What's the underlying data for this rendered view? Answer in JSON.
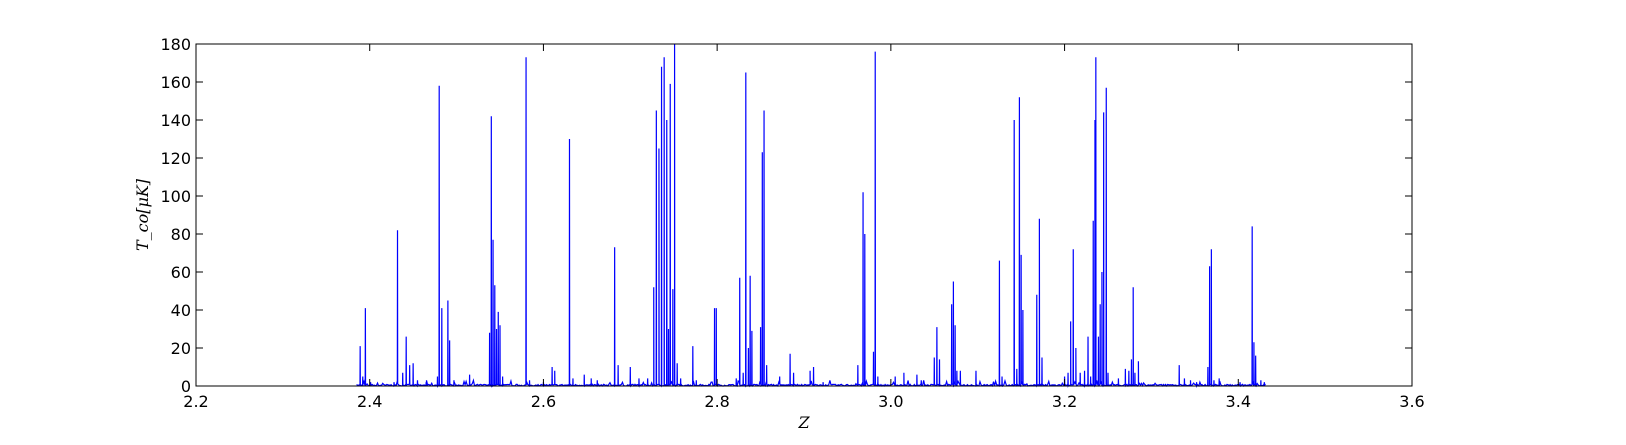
{
  "chart_data": {
    "type": "line",
    "title": "",
    "xlabel": "Z",
    "ylabel": "T_co[μK]",
    "xlim": [
      2.2,
      3.6
    ],
    "ylim": [
      0,
      180
    ],
    "xticks": [
      2.2,
      2.4,
      2.6,
      2.8,
      3.0,
      3.2,
      3.4,
      3.6
    ],
    "yticks": [
      0,
      20,
      40,
      60,
      80,
      100,
      120,
      140,
      160,
      180
    ],
    "xtick_labels": [
      "2.2",
      "2.4",
      "2.6",
      "2.8",
      "3.0",
      "3.2",
      "3.4",
      "3.6"
    ],
    "ytick_labels": [
      "0",
      "20",
      "40",
      "60",
      "80",
      "100",
      "120",
      "140",
      "160",
      "180"
    ],
    "grid": false,
    "legend": "none",
    "line_color": "#0000ff",
    "data_range_z": [
      2.385,
      3.432
    ],
    "peaks": [
      {
        "z": 2.389,
        "y": 21
      },
      {
        "z": 2.392,
        "y": 5
      },
      {
        "z": 2.395,
        "y": 41
      },
      {
        "z": 2.401,
        "y": 2
      },
      {
        "z": 2.428,
        "y": 2
      },
      {
        "z": 2.432,
        "y": 82
      },
      {
        "z": 2.438,
        "y": 7
      },
      {
        "z": 2.442,
        "y": 26
      },
      {
        "z": 2.446,
        "y": 11
      },
      {
        "z": 2.45,
        "y": 12
      },
      {
        "z": 2.455,
        "y": 3
      },
      {
        "z": 2.465,
        "y": 2
      },
      {
        "z": 2.478,
        "y": 5
      },
      {
        "z": 2.48,
        "y": 158
      },
      {
        "z": 2.483,
        "y": 41
      },
      {
        "z": 2.49,
        "y": 45
      },
      {
        "z": 2.492,
        "y": 24
      },
      {
        "z": 2.497,
        "y": 3
      },
      {
        "z": 2.515,
        "y": 6
      },
      {
        "z": 2.538,
        "y": 28
      },
      {
        "z": 2.54,
        "y": 142
      },
      {
        "z": 2.542,
        "y": 77
      },
      {
        "z": 2.544,
        "y": 53
      },
      {
        "z": 2.546,
        "y": 30
      },
      {
        "z": 2.548,
        "y": 39
      },
      {
        "z": 2.55,
        "y": 32
      },
      {
        "z": 2.553,
        "y": 5
      },
      {
        "z": 2.58,
        "y": 173
      },
      {
        "z": 2.584,
        "y": 3
      },
      {
        "z": 2.6,
        "y": 2
      },
      {
        "z": 2.61,
        "y": 10
      },
      {
        "z": 2.613,
        "y": 8
      },
      {
        "z": 2.63,
        "y": 130
      },
      {
        "z": 2.634,
        "y": 4
      },
      {
        "z": 2.647,
        "y": 6
      },
      {
        "z": 2.655,
        "y": 4
      },
      {
        "z": 2.662,
        "y": 3
      },
      {
        "z": 2.682,
        "y": 73
      },
      {
        "z": 2.686,
        "y": 11
      },
      {
        "z": 2.7,
        "y": 10
      },
      {
        "z": 2.71,
        "y": 4
      },
      {
        "z": 2.72,
        "y": 4
      },
      {
        "z": 2.727,
        "y": 52
      },
      {
        "z": 2.73,
        "y": 145
      },
      {
        "z": 2.733,
        "y": 125
      },
      {
        "z": 2.736,
        "y": 168
      },
      {
        "z": 2.739,
        "y": 173
      },
      {
        "z": 2.742,
        "y": 140
      },
      {
        "z": 2.744,
        "y": 30
      },
      {
        "z": 2.746,
        "y": 159
      },
      {
        "z": 2.749,
        "y": 51
      },
      {
        "z": 2.751,
        "y": 180
      },
      {
        "z": 2.754,
        "y": 12
      },
      {
        "z": 2.758,
        "y": 4
      },
      {
        "z": 2.772,
        "y": 21
      },
      {
        "z": 2.776,
        "y": 3
      },
      {
        "z": 2.797,
        "y": 41
      },
      {
        "z": 2.799,
        "y": 41
      },
      {
        "z": 2.822,
        "y": 4
      },
      {
        "z": 2.826,
        "y": 57
      },
      {
        "z": 2.83,
        "y": 7
      },
      {
        "z": 2.833,
        "y": 165
      },
      {
        "z": 2.836,
        "y": 20
      },
      {
        "z": 2.838,
        "y": 58
      },
      {
        "z": 2.84,
        "y": 29
      },
      {
        "z": 2.85,
        "y": 31
      },
      {
        "z": 2.852,
        "y": 123
      },
      {
        "z": 2.854,
        "y": 145
      },
      {
        "z": 2.857,
        "y": 11
      },
      {
        "z": 2.872,
        "y": 5
      },
      {
        "z": 2.884,
        "y": 17
      },
      {
        "z": 2.888,
        "y": 7
      },
      {
        "z": 2.907,
        "y": 8
      },
      {
        "z": 2.911,
        "y": 10
      },
      {
        "z": 2.922,
        "y": 2
      },
      {
        "z": 2.962,
        "y": 11
      },
      {
        "z": 2.968,
        "y": 102
      },
      {
        "z": 2.97,
        "y": 80
      },
      {
        "z": 2.98,
        "y": 18
      },
      {
        "z": 2.982,
        "y": 176
      },
      {
        "z": 2.985,
        "y": 5
      },
      {
        "z": 3.005,
        "y": 5
      },
      {
        "z": 3.015,
        "y": 7
      },
      {
        "z": 3.03,
        "y": 6
      },
      {
        "z": 3.035,
        "y": 3
      },
      {
        "z": 3.05,
        "y": 15
      },
      {
        "z": 3.053,
        "y": 31
      },
      {
        "z": 3.056,
        "y": 14
      },
      {
        "z": 3.07,
        "y": 43
      },
      {
        "z": 3.072,
        "y": 55
      },
      {
        "z": 3.074,
        "y": 32
      },
      {
        "z": 3.076,
        "y": 8
      },
      {
        "z": 3.08,
        "y": 8
      },
      {
        "z": 3.098,
        "y": 8
      },
      {
        "z": 3.125,
        "y": 66
      },
      {
        "z": 3.128,
        "y": 5
      },
      {
        "z": 3.142,
        "y": 140
      },
      {
        "z": 3.145,
        "y": 9
      },
      {
        "z": 3.148,
        "y": 152
      },
      {
        "z": 3.15,
        "y": 69
      },
      {
        "z": 3.152,
        "y": 40
      },
      {
        "z": 3.168,
        "y": 48
      },
      {
        "z": 3.171,
        "y": 88
      },
      {
        "z": 3.174,
        "y": 15
      },
      {
        "z": 3.2,
        "y": 5
      },
      {
        "z": 3.204,
        "y": 7
      },
      {
        "z": 3.207,
        "y": 34
      },
      {
        "z": 3.21,
        "y": 72
      },
      {
        "z": 3.213,
        "y": 20
      },
      {
        "z": 3.218,
        "y": 7
      },
      {
        "z": 3.223,
        "y": 8
      },
      {
        "z": 3.227,
        "y": 26
      },
      {
        "z": 3.23,
        "y": 5
      },
      {
        "z": 3.233,
        "y": 87
      },
      {
        "z": 3.235,
        "y": 140
      },
      {
        "z": 3.236,
        "y": 173
      },
      {
        "z": 3.239,
        "y": 26
      },
      {
        "z": 3.241,
        "y": 43
      },
      {
        "z": 3.243,
        "y": 60
      },
      {
        "z": 3.245,
        "y": 144
      },
      {
        "z": 3.248,
        "y": 157
      },
      {
        "z": 3.25,
        "y": 7
      },
      {
        "z": 3.262,
        "y": 4
      },
      {
        "z": 3.27,
        "y": 9
      },
      {
        "z": 3.274,
        "y": 8
      },
      {
        "z": 3.277,
        "y": 14
      },
      {
        "z": 3.279,
        "y": 52
      },
      {
        "z": 3.281,
        "y": 7
      },
      {
        "z": 3.285,
        "y": 13
      },
      {
        "z": 3.332,
        "y": 11
      },
      {
        "z": 3.338,
        "y": 4
      },
      {
        "z": 3.345,
        "y": 3
      },
      {
        "z": 3.352,
        "y": 2
      },
      {
        "z": 3.365,
        "y": 10
      },
      {
        "z": 3.367,
        "y": 63
      },
      {
        "z": 3.369,
        "y": 72
      },
      {
        "z": 3.372,
        "y": 3
      },
      {
        "z": 3.378,
        "y": 4
      },
      {
        "z": 3.402,
        "y": 2
      },
      {
        "z": 3.416,
        "y": 84
      },
      {
        "z": 3.418,
        "y": 23
      },
      {
        "z": 3.42,
        "y": 16
      },
      {
        "z": 3.426,
        "y": 3
      },
      {
        "z": 3.43,
        "y": 2
      }
    ]
  }
}
